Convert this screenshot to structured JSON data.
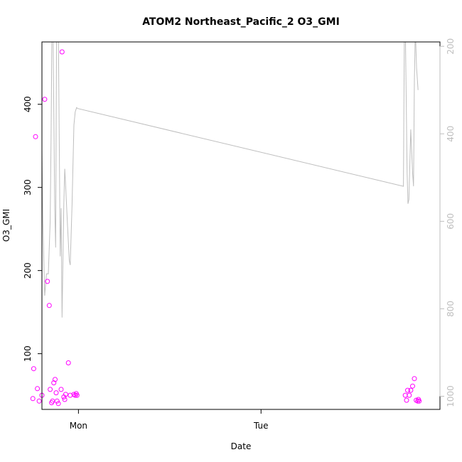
{
  "chart_data": {
    "type": "scatter",
    "title": "ATOM2 Northeast_Pacific_2 O3_GMI",
    "xlabel": "Date",
    "ylabel": "O3_GMI",
    "xlim": [
      -0.2,
      1.98
    ],
    "ylim": [
      33,
      475
    ],
    "x_ticks": [
      {
        "x": 0,
        "label": "Mon"
      },
      {
        "x": 1,
        "label": "Tue"
      }
    ],
    "y_ticks": [
      100,
      200,
      300,
      400
    ],
    "y2_axis": {
      "lim": [
        1030,
        190
      ],
      "ticks": [
        200,
        400,
        600,
        800,
        1000
      ],
      "color": "#bebebe"
    },
    "colors": {
      "points": "#ff00ff",
      "line": "#bebebe",
      "frame": "#000000"
    },
    "series": [
      {
        "type": "scatter",
        "axis": "left",
        "x": [
          -0.25,
          -0.245,
          -0.235,
          -0.225,
          -0.215,
          -0.2,
          -0.185,
          -0.17,
          -0.16,
          -0.155,
          -0.147,
          -0.142,
          -0.135,
          -0.128,
          -0.122,
          -0.117,
          -0.11,
          -0.095,
          -0.09,
          -0.08,
          -0.075,
          -0.07,
          -0.055,
          -0.045,
          -0.025,
          -0.018,
          -0.012,
          -0.008,
          1.79,
          1.797,
          1.803,
          1.812,
          1.82,
          1.83,
          1.84,
          1.85,
          1.858,
          1.862,
          1.866
        ],
        "y": [
          46,
          82,
          361,
          58,
          43,
          50,
          406,
          187,
          158,
          57,
          41,
          43,
          65,
          69,
          53,
          43,
          40,
          57,
          463,
          48,
          45,
          51,
          89,
          50,
          51,
          50,
          52,
          50,
          50,
          44,
          56,
          50,
          56,
          61,
          70,
          44,
          43,
          45,
          43
        ]
      },
      {
        "type": "line",
        "axis": "right",
        "x": [
          -0.25,
          -0.245,
          -0.235,
          -0.225,
          -0.215,
          -0.205,
          -0.195,
          -0.185,
          -0.175,
          -0.165,
          -0.155,
          -0.15,
          -0.145,
          -0.14,
          -0.13,
          -0.125,
          -0.12,
          -0.115,
          -0.11,
          -0.1,
          -0.095,
          -0.09,
          -0.08,
          -0.075,
          -0.07,
          -0.06,
          -0.05,
          -0.045,
          -0.035,
          -0.025,
          -0.018,
          -0.01,
          -0.005,
          1.78,
          1.785,
          1.79,
          1.8,
          1.805,
          1.81,
          1.82,
          1.83,
          1.835,
          1.84,
          1.845,
          1.852,
          1.86
        ],
        "y": [
          390,
          620,
          750,
          560,
          320,
          280,
          600,
          770,
          720,
          720,
          600,
          420,
          150,
          130,
          570,
          660,
          160,
          140,
          160,
          680,
          570,
          820,
          560,
          480,
          520,
          610,
          690,
          700,
          560,
          380,
          350,
          340,
          342,
          520,
          170,
          150,
          490,
          560,
          550,
          390,
          490,
          520,
          280,
          160,
          250,
          300
        ]
      }
    ]
  }
}
